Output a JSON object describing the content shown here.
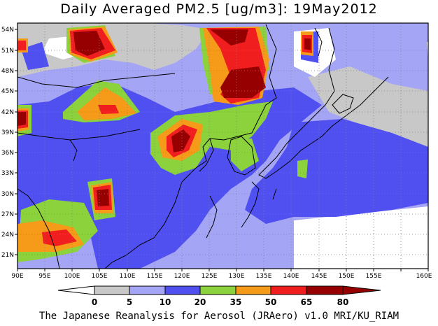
{
  "title": "Daily Averaged PM2.5 [ug/m3]: 19May2012",
  "footer": "The Japanese Reanalysis for Aerosol (JRAero) v1.0 MRI/KU_RIAM",
  "axes": {
    "lon_labels": [
      "90E",
      "95E",
      "100E",
      "105E",
      "110E",
      "115E",
      "120E",
      "125E",
      "130E",
      "135E",
      "140E",
      "145E",
      "150E",
      "155E",
      "160E"
    ],
    "lat_labels": [
      "54N",
      "51N",
      "48N",
      "45N",
      "42N",
      "39N",
      "36N",
      "33N",
      "30N",
      "27N",
      "24N",
      "21N"
    ]
  },
  "colorbar": {
    "labels": [
      "0",
      "5",
      "10",
      "20",
      "35",
      "50",
      "65",
      "80"
    ],
    "colors": [
      "#ffffff",
      "#c8c8c8",
      "#a5a5f5",
      "#5050f0",
      "#8cd23c",
      "#f59b19",
      "#f01e1e",
      "#960000"
    ]
  }
}
